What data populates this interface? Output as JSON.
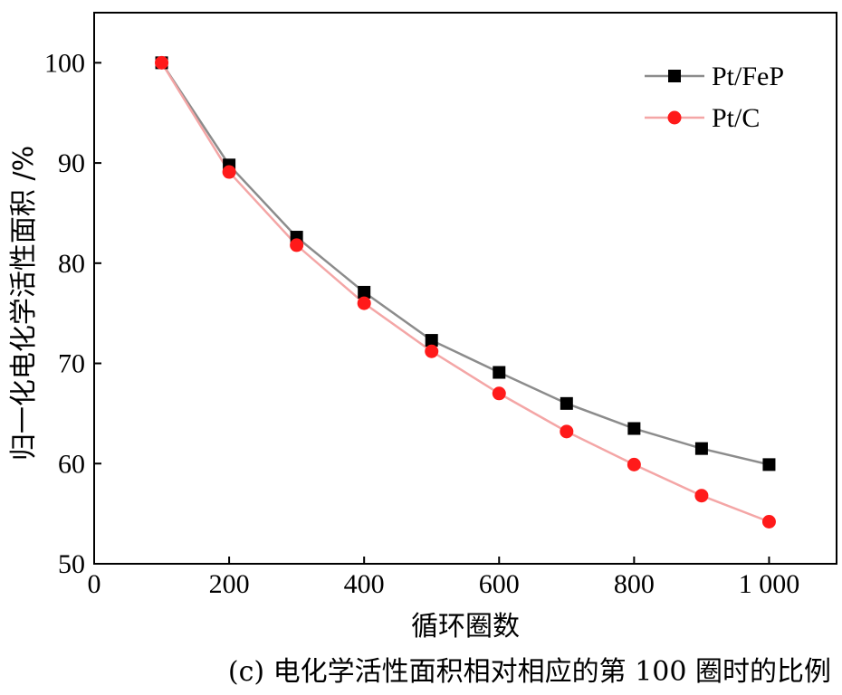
{
  "chart_data": {
    "type": "line",
    "xlabel": "循环圈数",
    "ylabel": "归一化电化学活性面积 /%",
    "caption": "(c) 电化学活性面积相对相应的第 100 圈时的比例",
    "xlim": [
      0,
      1100
    ],
    "ylim": [
      50,
      105
    ],
    "x_ticks": [
      0,
      200,
      400,
      600,
      800,
      1000
    ],
    "x_tick_labels": [
      "0",
      "200",
      "400",
      "600",
      "800",
      "1 000"
    ],
    "y_ticks": [
      50,
      60,
      70,
      80,
      90,
      100
    ],
    "y_tick_labels": [
      "50",
      "60",
      "70",
      "80",
      "90",
      "100"
    ],
    "legend_position": "top-right",
    "x": [
      100,
      200,
      300,
      400,
      500,
      600,
      700,
      800,
      900,
      1000
    ],
    "series": [
      {
        "name": "Pt/FeP",
        "marker": "square",
        "marker_color": "#000000",
        "line_color": "#8c8c8c",
        "values": [
          100,
          89.8,
          82.6,
          77.1,
          72.3,
          69.1,
          66.0,
          63.5,
          61.5,
          59.9
        ]
      },
      {
        "name": "Pt/C",
        "marker": "circle",
        "marker_color": "#ff1a1a",
        "line_color": "#f4a6a6",
        "values": [
          100,
          89.1,
          81.8,
          76.0,
          71.2,
          67.0,
          63.2,
          59.9,
          56.8,
          54.2
        ]
      }
    ]
  }
}
